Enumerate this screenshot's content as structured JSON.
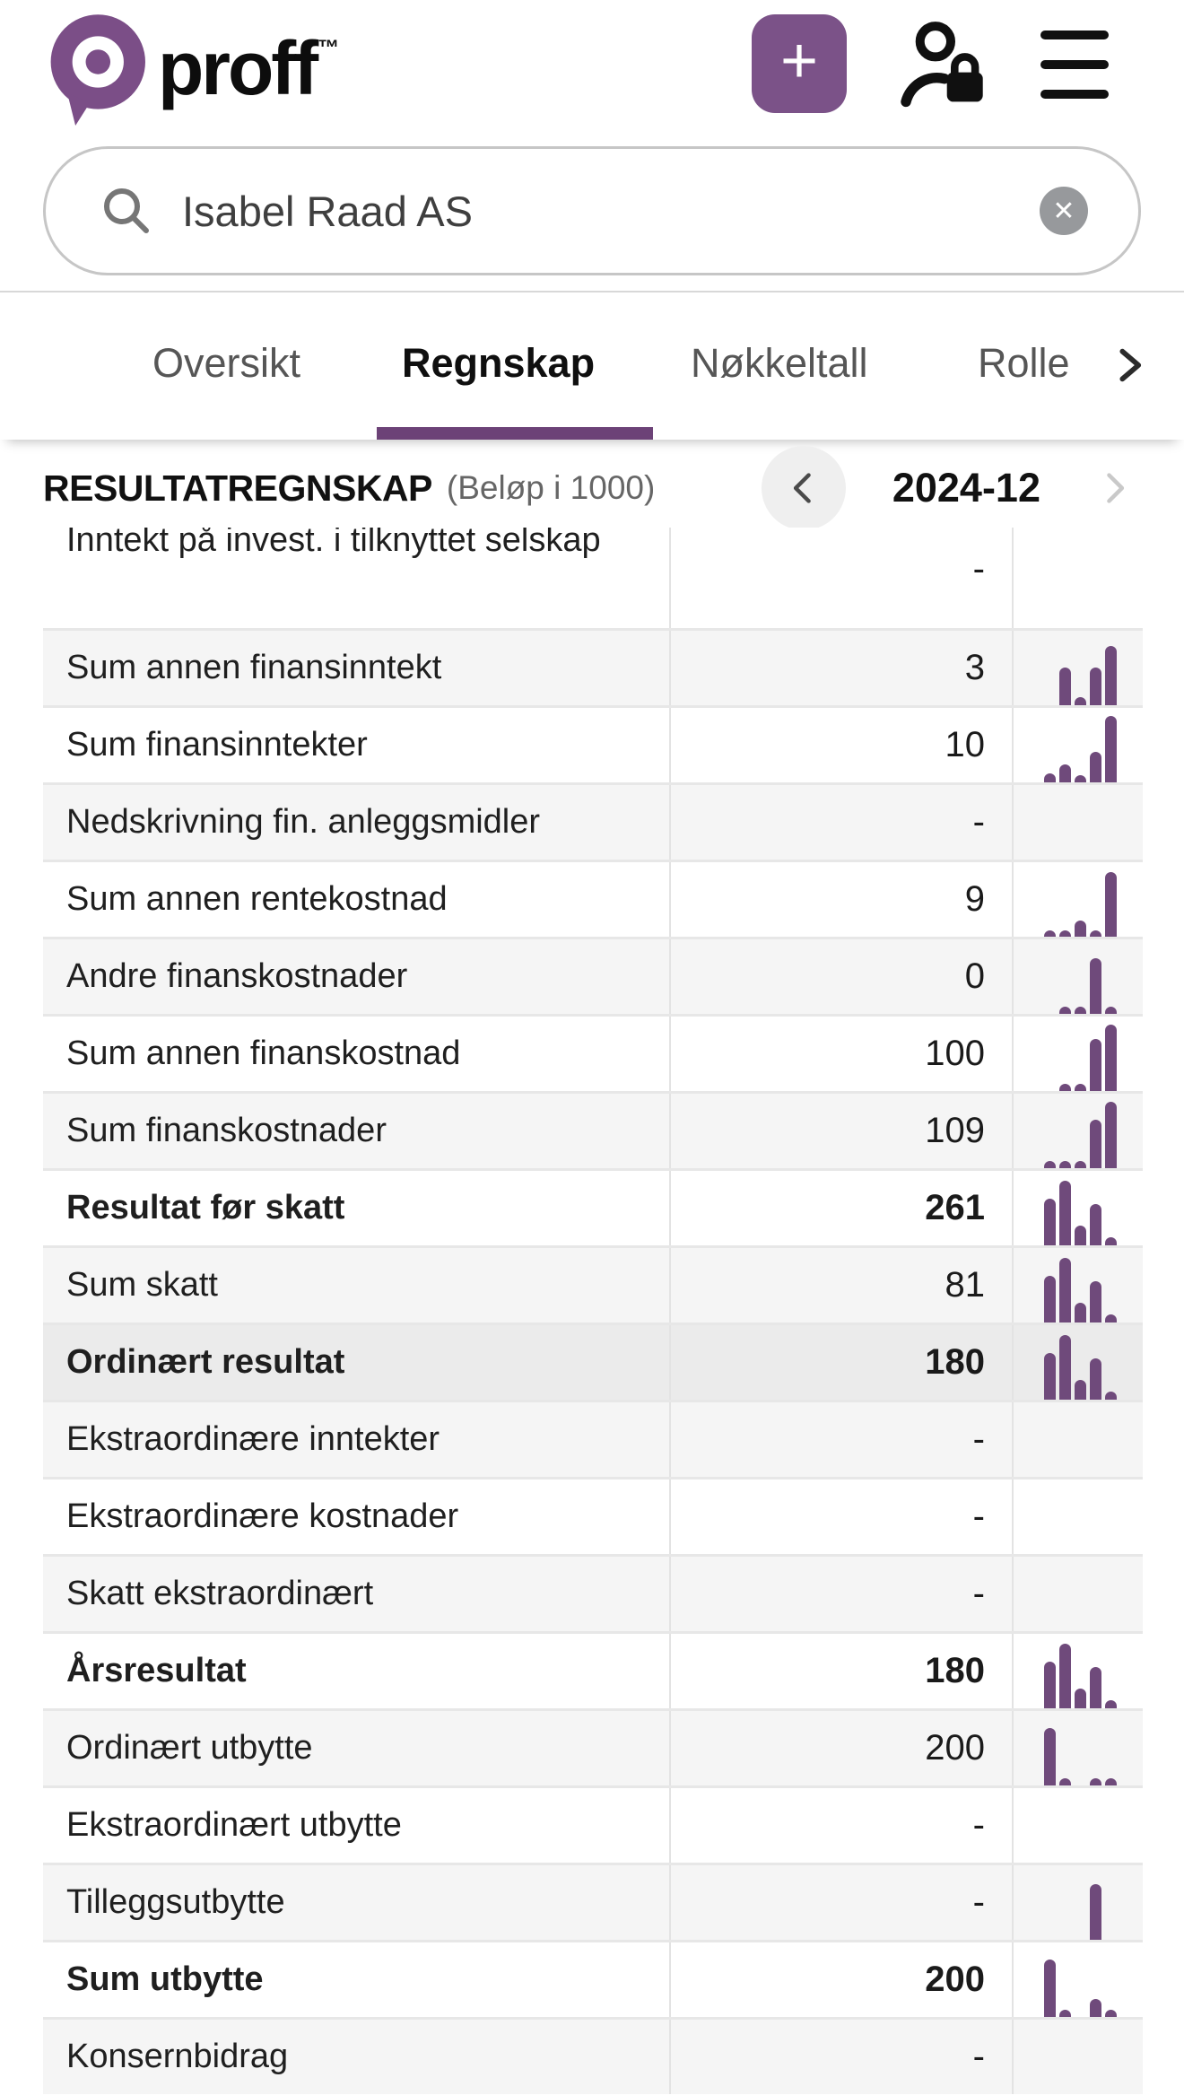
{
  "header": {
    "brand": "proff",
    "brand_tm": "™",
    "add_button_label": "+"
  },
  "search": {
    "value": "Isabel Raad AS",
    "clear_label": "✕"
  },
  "tabs": [
    {
      "label": "Oversikt",
      "active": false
    },
    {
      "label": "Regnskap",
      "active": true
    },
    {
      "label": "Nøkkeltall",
      "active": false
    },
    {
      "label": "Rolle",
      "active": false
    }
  ],
  "section": {
    "title": "RESULTATREGNSKAP",
    "subtitle": "(Beløp i 1000)",
    "period": "2024-12"
  },
  "colors": {
    "brand_purple": "#7B4E87",
    "button_purple": "#7B5288",
    "tab_underline": "#6C4277",
    "sparkline_bar": "#6F4A7B",
    "row_gray": "#f5f5f5",
    "row_highlight": "#ebebeb"
  },
  "table": {
    "rows": [
      {
        "label": "Inntekt på invest. i tilknyttet selskap",
        "value": "-",
        "bold": false,
        "bg": "white",
        "first": true,
        "spark": null
      },
      {
        "label": "Sum annen finansinntekt",
        "value": "3",
        "bold": false,
        "bg": "gray",
        "first": false,
        "spark": [
          0,
          42,
          9,
          42,
          66
        ]
      },
      {
        "label": "Sum finansinntekter",
        "value": "10",
        "bold": false,
        "bg": "white",
        "first": false,
        "spark": [
          10,
          20,
          8,
          34,
          74
        ]
      },
      {
        "label": "Nedskrivning fin. anleggsmidler",
        "value": "-",
        "bold": false,
        "bg": "gray",
        "first": false,
        "spark": null
      },
      {
        "label": "Sum annen rentekostnad",
        "value": "9",
        "bold": false,
        "bg": "white",
        "first": false,
        "spark": [
          7,
          7,
          18,
          7,
          72
        ]
      },
      {
        "label": "Andre finanskostnader",
        "value": "0",
        "bold": false,
        "bg": "gray",
        "first": false,
        "spark": [
          0,
          8,
          8,
          62,
          8
        ]
      },
      {
        "label": "Sum annen finanskostnad",
        "value": "100",
        "bold": false,
        "bg": "white",
        "first": false,
        "spark": [
          0,
          8,
          8,
          58,
          74
        ]
      },
      {
        "label": "Sum finanskostnader",
        "value": "109",
        "bold": false,
        "bg": "gray",
        "first": false,
        "spark": [
          8,
          8,
          8,
          54,
          74
        ]
      },
      {
        "label": "Resultat før skatt",
        "value": "261",
        "bold": true,
        "bg": "white",
        "first": false,
        "spark": [
          52,
          72,
          22,
          46,
          9
        ]
      },
      {
        "label": "Sum skatt",
        "value": "81",
        "bold": false,
        "bg": "gray",
        "first": false,
        "spark": [
          52,
          72,
          22,
          46,
          9
        ]
      },
      {
        "label": "Ordinært resultat",
        "value": "180",
        "bold": true,
        "bg": "hl",
        "first": false,
        "spark": [
          52,
          72,
          22,
          46,
          9
        ]
      },
      {
        "label": "Ekstraordinære inntekter",
        "value": "-",
        "bold": false,
        "bg": "gray",
        "first": false,
        "spark": null
      },
      {
        "label": "Ekstraordinære kostnader",
        "value": "-",
        "bold": false,
        "bg": "white",
        "first": false,
        "spark": null
      },
      {
        "label": "Skatt ekstraordinært",
        "value": "-",
        "bold": false,
        "bg": "gray",
        "first": false,
        "spark": null
      },
      {
        "label": "Årsresultat",
        "value": "180",
        "bold": true,
        "bg": "white",
        "first": false,
        "spark": [
          52,
          72,
          22,
          46,
          9
        ]
      },
      {
        "label": "Ordinært utbytte",
        "value": "200",
        "bold": false,
        "bg": "gray",
        "first": false,
        "spark": [
          64,
          8,
          0,
          8,
          8
        ]
      },
      {
        "label": "Ekstraordinært utbytte",
        "value": "-",
        "bold": false,
        "bg": "white",
        "first": false,
        "spark": null
      },
      {
        "label": "Tilleggsutbytte",
        "value": "-",
        "bold": false,
        "bg": "gray",
        "first": false,
        "spark": [
          0,
          0,
          0,
          62,
          0
        ]
      },
      {
        "label": "Sum utbytte",
        "value": "200",
        "bold": true,
        "bg": "white",
        "first": false,
        "spark": [
          64,
          8,
          0,
          20,
          8
        ]
      },
      {
        "label": "Konsernbidrag",
        "value": "-",
        "bold": false,
        "bg": "gray",
        "first": false,
        "spark": null
      }
    ]
  }
}
